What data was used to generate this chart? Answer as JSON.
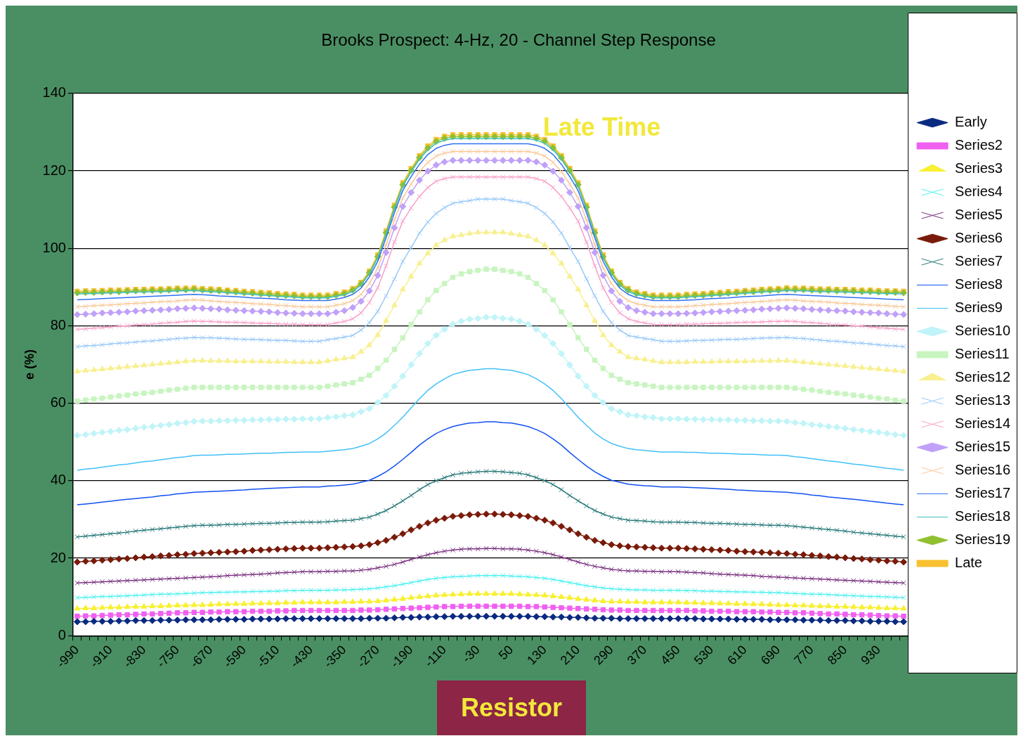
{
  "chart_data": {
    "type": "line",
    "title": "Brooks Prospect: 4-Hz, 20 - Channel Step Response",
    "ylabel": "e (%)",
    "categories": [
      "-990",
      null,
      null,
      null,
      "-910",
      null,
      null,
      null,
      "-830",
      null,
      null,
      null,
      "-750",
      null,
      null,
      null,
      "-670",
      null,
      null,
      null,
      "-590",
      null,
      null,
      null,
      "-510",
      null,
      null,
      null,
      "-430",
      null,
      null,
      null,
      "-350",
      null,
      null,
      null,
      "-270",
      null,
      null,
      null,
      "-190",
      null,
      null,
      null,
      "-110",
      null,
      null,
      null,
      "-30",
      null,
      null,
      null,
      "50",
      null,
      null,
      null,
      "130",
      null,
      null,
      null,
      "210",
      null,
      null,
      null,
      "290",
      null,
      null,
      null,
      "370",
      null,
      null,
      null,
      "450",
      null,
      null,
      null,
      "530",
      null,
      null,
      null,
      "610",
      null,
      null,
      null,
      "690",
      null,
      null,
      null,
      "770",
      null,
      null,
      null,
      "850",
      null,
      null,
      null,
      "930",
      null,
      null,
      null
    ],
    "ylim": [
      0,
      140
    ],
    "yticks": [
      0,
      20,
      40,
      60,
      80,
      100,
      120,
      140
    ],
    "grid": "y",
    "legend": "right",
    "annotations": [
      "Late Time",
      "Resistor"
    ],
    "series": [
      {
        "name": "Early",
        "color": "#0a2a80",
        "marker": "diamond",
        "values": [
          3.6,
          3.6,
          3.7,
          3.7,
          3.7,
          3.8,
          3.8,
          3.9,
          3.9,
          3.9,
          4.0,
          4.0,
          4.0,
          4.1,
          4.1,
          4.1,
          4.1,
          4.2,
          4.2,
          4.2,
          4.2,
          4.3,
          4.3,
          4.3,
          4.3,
          4.4,
          4.4,
          4.4,
          4.4,
          4.4,
          4.4,
          4.4,
          4.4,
          4.4,
          4.4,
          4.5,
          4.5,
          4.5,
          4.6,
          4.7,
          4.7,
          4.8,
          4.8,
          4.9,
          4.9,
          5.0,
          5.0,
          5.0,
          5.0,
          5.0,
          5.0,
          5.0,
          5.0,
          5.0,
          5.0,
          4.9,
          4.9,
          4.8,
          4.8,
          4.7,
          4.7,
          4.6,
          4.5,
          4.5,
          4.5,
          4.4,
          4.4,
          4.4,
          4.4,
          4.4,
          4.4,
          4.4,
          4.4,
          4.4,
          4.4,
          4.3,
          4.3,
          4.3,
          4.3,
          4.2,
          4.2,
          4.2,
          4.2,
          4.1,
          4.1,
          4.1,
          4.1,
          4.0,
          4.0,
          4.0,
          3.9,
          3.9,
          3.9,
          3.8,
          3.8,
          3.7,
          3.7,
          3.7,
          3.6,
          3.6
        ]
      },
      {
        "name": "Series2",
        "color": "#f060f0",
        "marker": "square",
        "values": [
          5.0,
          5.1,
          5.1,
          5.2,
          5.3,
          5.4,
          5.4,
          5.5,
          5.6,
          5.6,
          5.7,
          5.8,
          5.9,
          5.9,
          6.0,
          6.0,
          6.1,
          6.1,
          6.2,
          6.2,
          6.2,
          6.3,
          6.3,
          6.3,
          6.4,
          6.4,
          6.5,
          6.5,
          6.5,
          6.5,
          6.5,
          6.5,
          6.5,
          6.5,
          6.6,
          6.6,
          6.7,
          6.8,
          6.9,
          7.0,
          7.1,
          7.2,
          7.3,
          7.4,
          7.5,
          7.5,
          7.6,
          7.6,
          7.6,
          7.6,
          7.6,
          7.6,
          7.6,
          7.6,
          7.5,
          7.5,
          7.4,
          7.3,
          7.2,
          7.1,
          7.0,
          6.9,
          6.8,
          6.7,
          6.6,
          6.6,
          6.5,
          6.5,
          6.5,
          6.5,
          6.5,
          6.5,
          6.5,
          6.5,
          6.4,
          6.4,
          6.3,
          6.3,
          6.3,
          6.2,
          6.2,
          6.2,
          6.1,
          6.1,
          6.0,
          6.0,
          5.9,
          5.9,
          5.8,
          5.7,
          5.6,
          5.6,
          5.5,
          5.4,
          5.4,
          5.3,
          5.2,
          5.1,
          5.1,
          5.0
        ]
      },
      {
        "name": "Series3",
        "color": "#f8f030",
        "marker": "triangle",
        "values": [
          7.0,
          7.1,
          7.1,
          7.2,
          7.3,
          7.3,
          7.4,
          7.5,
          7.5,
          7.6,
          7.6,
          7.7,
          7.8,
          7.8,
          7.9,
          7.9,
          8.0,
          8.1,
          8.1,
          8.2,
          8.2,
          8.3,
          8.3,
          8.4,
          8.4,
          8.5,
          8.5,
          8.6,
          8.6,
          8.6,
          8.6,
          8.6,
          8.7,
          8.7,
          8.8,
          8.8,
          8.9,
          9.1,
          9.3,
          9.5,
          9.8,
          10.0,
          10.2,
          10.4,
          10.5,
          10.6,
          10.7,
          10.8,
          10.8,
          10.8,
          10.8,
          10.8,
          10.8,
          10.7,
          10.6,
          10.5,
          10.4,
          10.2,
          10.0,
          9.8,
          9.5,
          9.3,
          9.1,
          8.9,
          8.8,
          8.8,
          8.7,
          8.7,
          8.6,
          8.6,
          8.6,
          8.6,
          8.6,
          8.5,
          8.5,
          8.4,
          8.4,
          8.3,
          8.3,
          8.2,
          8.2,
          8.1,
          8.1,
          8.0,
          7.9,
          7.9,
          7.8,
          7.8,
          7.7,
          7.6,
          7.6,
          7.5,
          7.5,
          7.4,
          7.3,
          7.3,
          7.2,
          7.1,
          7.1,
          7.0
        ]
      },
      {
        "name": "Series4",
        "color": "#50f0f0",
        "marker": "cross",
        "values": [
          9.8,
          9.9,
          10.0,
          10.1,
          10.1,
          10.2,
          10.3,
          10.4,
          10.5,
          10.6,
          10.7,
          10.7,
          10.8,
          10.9,
          11.0,
          11.1,
          11.1,
          11.2,
          11.2,
          11.3,
          11.3,
          11.4,
          11.4,
          11.5,
          11.5,
          11.6,
          11.6,
          11.7,
          11.7,
          11.7,
          11.7,
          11.8,
          11.8,
          11.9,
          12.0,
          12.1,
          12.3,
          12.6,
          12.9,
          13.3,
          13.7,
          14.1,
          14.5,
          14.8,
          15.0,
          15.2,
          15.3,
          15.4,
          15.5,
          15.5,
          15.5,
          15.5,
          15.4,
          15.3,
          15.2,
          15.0,
          14.8,
          14.5,
          14.1,
          13.7,
          13.3,
          12.9,
          12.6,
          12.3,
          12.1,
          12.0,
          11.9,
          11.8,
          11.8,
          11.7,
          11.7,
          11.7,
          11.7,
          11.6,
          11.6,
          11.5,
          11.5,
          11.4,
          11.4,
          11.3,
          11.3,
          11.2,
          11.2,
          11.1,
          11.1,
          11.0,
          10.9,
          10.8,
          10.7,
          10.7,
          10.6,
          10.5,
          10.4,
          10.3,
          10.2,
          10.1,
          10.1,
          10.0,
          9.9,
          9.8
        ]
      },
      {
        "name": "Series5",
        "color": "#7a3080",
        "marker": "cross",
        "values": [
          13.6,
          13.7,
          13.8,
          13.9,
          14.0,
          14.1,
          14.2,
          14.3,
          14.4,
          14.5,
          14.6,
          14.7,
          14.8,
          14.9,
          15.0,
          15.1,
          15.2,
          15.3,
          15.5,
          15.6,
          15.7,
          15.8,
          15.9,
          16.0,
          16.2,
          16.3,
          16.4,
          16.5,
          16.5,
          16.5,
          16.6,
          16.6,
          16.7,
          16.7,
          16.9,
          17.1,
          17.5,
          17.9,
          18.4,
          19.0,
          19.7,
          20.3,
          20.9,
          21.4,
          21.8,
          22.1,
          22.3,
          22.4,
          22.4,
          22.5,
          22.5,
          22.4,
          22.4,
          22.3,
          22.1,
          21.8,
          21.4,
          20.9,
          20.3,
          19.7,
          19.0,
          18.4,
          17.9,
          17.5,
          17.1,
          16.9,
          16.7,
          16.7,
          16.6,
          16.6,
          16.5,
          16.5,
          16.5,
          16.4,
          16.3,
          16.2,
          16.0,
          15.9,
          15.8,
          15.7,
          15.6,
          15.5,
          15.3,
          15.2,
          15.1,
          15.0,
          14.9,
          14.8,
          14.7,
          14.6,
          14.5,
          14.4,
          14.3,
          14.2,
          14.1,
          14.0,
          13.9,
          13.8,
          13.7,
          13.6
        ]
      },
      {
        "name": "Series6",
        "color": "#7a1a0a",
        "marker": "diamond",
        "values": [
          19.0,
          19.2,
          19.3,
          19.5,
          19.6,
          19.8,
          19.9,
          20.1,
          20.3,
          20.4,
          20.6,
          20.7,
          20.9,
          21.0,
          21.2,
          21.3,
          21.4,
          21.5,
          21.6,
          21.7,
          21.8,
          22.0,
          22.1,
          22.2,
          22.3,
          22.4,
          22.5,
          22.6,
          22.6,
          22.6,
          22.7,
          22.8,
          22.9,
          23.0,
          23.2,
          23.5,
          24.0,
          24.6,
          25.4,
          26.3,
          27.3,
          28.2,
          29.1,
          29.8,
          30.3,
          30.8,
          31.0,
          31.2,
          31.3,
          31.4,
          31.4,
          31.3,
          31.2,
          31.0,
          30.8,
          30.3,
          29.8,
          29.1,
          28.2,
          27.3,
          26.3,
          25.4,
          24.6,
          24.0,
          23.5,
          23.2,
          23.0,
          22.9,
          22.8,
          22.7,
          22.6,
          22.6,
          22.6,
          22.5,
          22.4,
          22.3,
          22.2,
          22.1,
          22.0,
          21.8,
          21.7,
          21.6,
          21.5,
          21.4,
          21.3,
          21.2,
          21.0,
          20.9,
          20.7,
          20.6,
          20.4,
          20.3,
          20.1,
          19.9,
          19.8,
          19.6,
          19.5,
          19.3,
          19.2,
          19.0
        ]
      },
      {
        "name": "Series7",
        "color": "#2a7a7a",
        "marker": "cross",
        "values": [
          25.5,
          25.7,
          25.9,
          26.1,
          26.3,
          26.5,
          26.7,
          27.0,
          27.2,
          27.4,
          27.6,
          27.8,
          28.0,
          28.2,
          28.4,
          28.5,
          28.5,
          28.6,
          28.7,
          28.7,
          28.8,
          28.9,
          29.0,
          29.0,
          29.1,
          29.2,
          29.2,
          29.3,
          29.3,
          29.3,
          29.4,
          29.6,
          29.7,
          29.8,
          30.2,
          30.6,
          31.4,
          32.3,
          33.5,
          34.8,
          36.2,
          37.7,
          39.0,
          40.0,
          40.8,
          41.5,
          41.9,
          42.1,
          42.3,
          42.4,
          42.4,
          42.3,
          42.1,
          41.9,
          41.5,
          40.8,
          40.0,
          39.0,
          37.7,
          36.2,
          34.8,
          33.5,
          32.3,
          31.4,
          30.6,
          30.2,
          29.8,
          29.7,
          29.6,
          29.4,
          29.3,
          29.3,
          29.3,
          29.2,
          29.2,
          29.1,
          29.0,
          29.0,
          28.9,
          28.8,
          28.7,
          28.7,
          28.6,
          28.5,
          28.5,
          28.4,
          28.2,
          28.0,
          27.8,
          27.6,
          27.4,
          27.2,
          27.0,
          26.7,
          26.5,
          26.3,
          26.1,
          25.9,
          25.7,
          25.5
        ]
      },
      {
        "name": "Series8",
        "color": "#1050f0",
        "marker": "none",
        "values": [
          33.8,
          34.0,
          34.2,
          34.5,
          34.7,
          35.0,
          35.2,
          35.4,
          35.6,
          35.8,
          36.1,
          36.3,
          36.6,
          36.8,
          37.0,
          37.1,
          37.2,
          37.3,
          37.4,
          37.5,
          37.6,
          37.8,
          37.9,
          38.0,
          38.1,
          38.2,
          38.3,
          38.4,
          38.4,
          38.4,
          38.6,
          38.7,
          38.9,
          39.1,
          39.6,
          40.1,
          41.1,
          42.3,
          43.8,
          45.5,
          47.3,
          49.2,
          50.8,
          52.2,
          53.2,
          54.0,
          54.5,
          54.9,
          55.0,
          55.2,
          55.2,
          55.0,
          54.9,
          54.5,
          54.0,
          53.2,
          52.2,
          50.8,
          49.2,
          47.3,
          45.5,
          43.8,
          42.3,
          41.1,
          40.1,
          39.6,
          39.1,
          38.9,
          38.7,
          38.6,
          38.4,
          38.4,
          38.4,
          38.3,
          38.2,
          38.1,
          38.0,
          37.9,
          37.8,
          37.6,
          37.5,
          37.4,
          37.3,
          37.2,
          37.1,
          37.0,
          36.8,
          36.6,
          36.3,
          36.1,
          35.8,
          35.6,
          35.4,
          35.2,
          35.0,
          34.7,
          34.5,
          34.2,
          34.0,
          33.8
        ]
      },
      {
        "name": "Series9",
        "color": "#40c0f8",
        "marker": "none",
        "values": [
          42.7,
          43.0,
          43.2,
          43.5,
          43.8,
          44.1,
          44.3,
          44.6,
          44.9,
          45.1,
          45.4,
          45.7,
          46.0,
          46.2,
          46.5,
          46.6,
          46.6,
          46.7,
          46.8,
          46.8,
          46.9,
          47.0,
          47.1,
          47.1,
          47.2,
          47.3,
          47.3,
          47.4,
          47.4,
          47.4,
          47.6,
          47.8,
          48.0,
          48.3,
          48.9,
          49.6,
          50.8,
          52.3,
          54.3,
          56.4,
          58.8,
          61.2,
          63.3,
          65.0,
          66.3,
          67.4,
          68.0,
          68.5,
          68.7,
          68.9,
          68.9,
          68.7,
          68.5,
          68.0,
          67.4,
          66.3,
          65.0,
          63.3,
          61.2,
          58.8,
          56.4,
          54.3,
          52.3,
          50.8,
          49.6,
          48.9,
          48.3,
          48.0,
          47.8,
          47.6,
          47.4,
          47.4,
          47.4,
          47.3,
          47.3,
          47.2,
          47.1,
          47.1,
          47.0,
          46.9,
          46.8,
          46.8,
          46.7,
          46.6,
          46.6,
          46.5,
          46.2,
          46.0,
          45.7,
          45.4,
          45.1,
          44.9,
          44.6,
          44.3,
          44.1,
          43.8,
          43.5,
          43.2,
          43.0,
          42.7
        ]
      },
      {
        "name": "Series10",
        "color": "#c0f4f8",
        "marker": "diamond",
        "values": [
          51.7,
          51.9,
          52.2,
          52.5,
          52.7,
          53.0,
          53.2,
          53.5,
          53.8,
          54.0,
          54.3,
          54.5,
          54.8,
          55.0,
          55.3,
          55.4,
          55.4,
          55.5,
          55.5,
          55.6,
          55.6,
          55.7,
          55.7,
          55.8,
          55.8,
          55.9,
          55.9,
          56.0,
          56.0,
          56.0,
          56.3,
          56.5,
          56.8,
          57.0,
          57.8,
          58.6,
          60.2,
          62.0,
          64.4,
          67.0,
          69.9,
          72.8,
          75.4,
          77.5,
          79.1,
          80.4,
          81.2,
          81.7,
          81.9,
          82.2,
          82.2,
          81.9,
          81.7,
          81.2,
          80.4,
          79.1,
          77.5,
          75.4,
          72.8,
          69.9,
          67.0,
          64.4,
          62.0,
          60.2,
          58.6,
          57.8,
          57.0,
          56.8,
          56.5,
          56.3,
          56.0,
          56.0,
          56.0,
          55.9,
          55.9,
          55.8,
          55.8,
          55.7,
          55.7,
          55.6,
          55.6,
          55.5,
          55.5,
          55.4,
          55.4,
          55.3,
          55.0,
          54.8,
          54.5,
          54.3,
          54.0,
          53.8,
          53.5,
          53.2,
          53.0,
          52.7,
          52.5,
          52.2,
          51.9,
          51.7
        ]
      },
      {
        "name": "Series11",
        "color": "#c8f4c0",
        "marker": "square",
        "values": [
          60.6,
          60.8,
          61.1,
          61.3,
          61.6,
          61.9,
          62.1,
          62.4,
          62.6,
          62.8,
          63.1,
          63.4,
          63.6,
          63.9,
          64.1,
          64.1,
          64.1,
          64.1,
          64.1,
          64.1,
          64.1,
          64.1,
          64.1,
          64.1,
          64.1,
          64.1,
          64.1,
          64.1,
          64.1,
          64.1,
          64.4,
          64.7,
          65.0,
          65.3,
          66.2,
          67.2,
          69.0,
          71.1,
          73.9,
          76.9,
          80.3,
          83.6,
          86.7,
          89.1,
          90.9,
          92.5,
          93.4,
          94.0,
          94.3,
          94.6,
          94.6,
          94.3,
          94.0,
          93.4,
          92.5,
          90.9,
          89.1,
          86.7,
          83.6,
          80.3,
          76.9,
          73.9,
          71.1,
          69.0,
          67.2,
          66.2,
          65.3,
          65.0,
          64.7,
          64.4,
          64.1,
          64.1,
          64.1,
          64.1,
          64.1,
          64.1,
          64.1,
          64.1,
          64.1,
          64.1,
          64.1,
          64.1,
          64.1,
          64.1,
          64.1,
          64.1,
          63.9,
          63.6,
          63.4,
          63.1,
          62.8,
          62.6,
          62.4,
          62.1,
          61.9,
          61.6,
          61.3,
          61.1,
          60.8,
          60.6
        ]
      },
      {
        "name": "Series12",
        "color": "#f8f090",
        "marker": "triangle",
        "values": [
          68.2,
          68.4,
          68.6,
          68.8,
          69.0,
          69.2,
          69.4,
          69.6,
          69.8,
          70.0,
          70.2,
          70.4,
          70.6,
          70.8,
          71.0,
          71.0,
          70.9,
          70.9,
          70.9,
          70.8,
          70.8,
          70.8,
          70.8,
          70.7,
          70.7,
          70.7,
          70.6,
          70.6,
          70.6,
          70.6,
          70.9,
          71.3,
          71.6,
          71.9,
          73.3,
          75.0,
          77.6,
          81.3,
          85.3,
          89.4,
          92.7,
          96.1,
          98.7,
          100.8,
          102.1,
          103.1,
          103.4,
          103.8,
          104.1,
          104.1,
          104.1,
          104.1,
          103.8,
          103.4,
          103.1,
          102.1,
          100.8,
          98.7,
          96.1,
          92.7,
          89.4,
          85.3,
          81.3,
          77.6,
          75.0,
          73.3,
          71.9,
          71.6,
          71.3,
          70.9,
          70.6,
          70.6,
          70.6,
          70.6,
          70.7,
          70.7,
          70.7,
          70.8,
          70.8,
          70.8,
          70.8,
          70.9,
          70.9,
          70.9,
          71.0,
          71.0,
          70.8,
          70.6,
          70.4,
          70.2,
          70.0,
          69.8,
          69.6,
          69.4,
          69.2,
          69.0,
          68.8,
          68.6,
          68.4,
          68.2
        ]
      },
      {
        "name": "Series13",
        "color": "#98c8f8",
        "marker": "cross",
        "values": [
          74.6,
          74.8,
          74.9,
          75.1,
          75.3,
          75.5,
          75.6,
          75.8,
          76.0,
          76.1,
          76.3,
          76.5,
          76.7,
          76.8,
          77.0,
          76.9,
          76.9,
          76.8,
          76.7,
          76.6,
          76.5,
          76.5,
          76.4,
          76.3,
          76.2,
          76.2,
          76.1,
          76.0,
          76.0,
          76.0,
          76.4,
          76.7,
          77.1,
          77.5,
          78.9,
          80.8,
          83.7,
          87.7,
          92.1,
          96.6,
          100.2,
          103.9,
          106.8,
          109.0,
          110.5,
          111.6,
          112.0,
          112.3,
          112.7,
          112.7,
          112.7,
          112.7,
          112.3,
          112.0,
          111.6,
          110.5,
          109.0,
          106.8,
          103.9,
          100.2,
          96.6,
          92.1,
          87.7,
          83.7,
          80.8,
          78.9,
          77.5,
          77.1,
          76.7,
          76.4,
          76.0,
          76.0,
          76.0,
          76.1,
          76.2,
          76.2,
          76.3,
          76.4,
          76.5,
          76.5,
          76.6,
          76.7,
          76.8,
          76.9,
          76.9,
          77.0,
          76.8,
          76.7,
          76.5,
          76.3,
          76.1,
          76.0,
          75.8,
          75.6,
          75.5,
          75.3,
          75.1,
          74.9,
          74.8,
          74.6
        ]
      },
      {
        "name": "Series14",
        "color": "#f8a0c8",
        "marker": "cross",
        "values": [
          79.1,
          79.2,
          79.4,
          79.5,
          79.7,
          79.9,
          80.0,
          80.2,
          80.3,
          80.4,
          80.6,
          80.8,
          80.9,
          81.1,
          81.2,
          81.1,
          81.1,
          81.0,
          80.9,
          80.9,
          80.8,
          80.7,
          80.6,
          80.6,
          80.5,
          80.4,
          80.4,
          80.3,
          80.3,
          80.3,
          80.3,
          80.7,
          81.1,
          81.8,
          83.3,
          86.0,
          89.8,
          95.5,
          101.6,
          107.0,
          110.4,
          113.4,
          115.7,
          117.3,
          118.0,
          118.4,
          118.4,
          118.4,
          118.4,
          118.4,
          118.4,
          118.4,
          118.4,
          118.4,
          118.4,
          118.0,
          117.3,
          115.7,
          113.4,
          110.4,
          107.0,
          101.6,
          95.5,
          89.8,
          86.0,
          83.3,
          81.8,
          81.1,
          80.7,
          80.3,
          80.3,
          80.3,
          80.3,
          80.4,
          80.4,
          80.5,
          80.6,
          80.6,
          80.7,
          80.8,
          80.9,
          80.9,
          81.0,
          81.1,
          81.1,
          81.2,
          81.1,
          80.9,
          80.8,
          80.6,
          80.4,
          80.3,
          80.2,
          80.0,
          79.9,
          79.7,
          79.5,
          79.4,
          79.2,
          79.1
        ]
      },
      {
        "name": "Series15",
        "color": "#c0a0f8",
        "marker": "diamond",
        "values": [
          82.9,
          83.0,
          83.1,
          83.3,
          83.4,
          83.5,
          83.6,
          83.8,
          83.9,
          84.0,
          84.1,
          84.2,
          84.4,
          84.5,
          84.6,
          84.5,
          84.4,
          84.3,
          84.1,
          84.0,
          83.9,
          83.8,
          83.7,
          83.6,
          83.4,
          83.3,
          83.2,
          83.1,
          83.1,
          83.1,
          83.1,
          83.5,
          83.9,
          84.7,
          86.3,
          89.0,
          93.0,
          98.9,
          105.3,
          110.8,
          114.4,
          117.6,
          119.9,
          121.5,
          122.3,
          122.7,
          122.7,
          122.7,
          122.7,
          122.7,
          122.7,
          122.7,
          122.7,
          122.7,
          122.7,
          122.3,
          121.5,
          119.9,
          117.6,
          114.4,
          110.8,
          105.3,
          98.9,
          93.0,
          89.0,
          86.3,
          84.7,
          83.9,
          83.5,
          83.1,
          83.1,
          83.1,
          83.1,
          83.2,
          83.3,
          83.4,
          83.6,
          83.7,
          83.8,
          83.9,
          84.0,
          84.1,
          84.3,
          84.4,
          84.5,
          84.6,
          84.5,
          84.4,
          84.2,
          84.1,
          84.0,
          83.9,
          83.8,
          83.6,
          83.5,
          83.4,
          83.3,
          83.1,
          83.0,
          82.9
        ]
      },
      {
        "name": "Series16",
        "color": "#f8c898",
        "marker": "cross",
        "values": [
          84.9,
          85.0,
          85.2,
          85.3,
          85.4,
          85.5,
          85.7,
          85.8,
          85.9,
          86.1,
          86.2,
          86.3,
          86.4,
          86.6,
          86.7,
          86.6,
          86.4,
          86.3,
          86.1,
          86.0,
          85.9,
          85.7,
          85.6,
          85.5,
          85.3,
          85.2,
          85.0,
          84.9,
          84.9,
          84.9,
          84.9,
          85.3,
          85.7,
          86.5,
          88.1,
          90.9,
          94.9,
          100.9,
          107.4,
          113.0,
          116.6,
          119.8,
          122.2,
          123.8,
          124.6,
          125.0,
          125.0,
          125.0,
          125.0,
          125.0,
          125.0,
          125.0,
          125.0,
          125.0,
          125.0,
          124.6,
          123.8,
          122.2,
          119.8,
          116.6,
          113.0,
          107.4,
          100.9,
          94.9,
          90.9,
          88.1,
          86.5,
          85.7,
          85.3,
          84.9,
          84.9,
          84.9,
          84.9,
          85.0,
          85.2,
          85.3,
          85.5,
          85.6,
          85.7,
          85.9,
          86.0,
          86.1,
          86.3,
          86.4,
          86.6,
          86.7,
          86.6,
          86.4,
          86.3,
          86.2,
          86.1,
          85.9,
          85.8,
          85.7,
          85.5,
          85.4,
          85.3,
          85.2,
          85.0,
          84.9
        ]
      },
      {
        "name": "Series17",
        "color": "#3070f0",
        "marker": "none",
        "values": [
          86.7,
          86.8,
          86.9,
          87.0,
          87.1,
          87.2,
          87.3,
          87.4,
          87.5,
          87.6,
          87.7,
          87.8,
          87.9,
          88.0,
          88.1,
          88.0,
          87.9,
          87.7,
          87.6,
          87.5,
          87.4,
          87.2,
          87.1,
          87.0,
          86.9,
          86.7,
          86.6,
          86.5,
          86.5,
          86.5,
          86.5,
          86.9,
          87.3,
          88.1,
          89.7,
          92.6,
          96.6,
          102.7,
          109.2,
          114.9,
          118.5,
          121.7,
          124.2,
          125.8,
          126.6,
          127.0,
          127.0,
          127.0,
          127.0,
          127.0,
          127.0,
          127.0,
          127.0,
          127.0,
          127.0,
          126.6,
          125.8,
          124.2,
          121.7,
          118.5,
          114.9,
          109.2,
          102.7,
          96.6,
          92.6,
          89.7,
          88.1,
          87.3,
          86.9,
          86.5,
          86.5,
          86.5,
          86.5,
          86.6,
          86.7,
          86.9,
          87.0,
          87.1,
          87.2,
          87.4,
          87.5,
          87.6,
          87.7,
          87.9,
          88.0,
          88.1,
          88.0,
          87.9,
          87.8,
          87.7,
          87.6,
          87.5,
          87.4,
          87.3,
          87.2,
          87.1,
          87.0,
          86.9,
          86.8,
          86.7
        ]
      },
      {
        "name": "Series18",
        "color": "#40c0c0",
        "marker": "none",
        "values": [
          88.2,
          88.3,
          88.3,
          88.4,
          88.5,
          88.5,
          88.6,
          88.7,
          88.7,
          88.8,
          88.8,
          88.9,
          89.0,
          89.0,
          89.1,
          88.9,
          88.8,
          88.7,
          88.5,
          88.4,
          88.2,
          88.1,
          87.9,
          87.8,
          87.6,
          87.5,
          87.4,
          87.2,
          87.2,
          87.2,
          87.2,
          87.6,
          88.0,
          88.8,
          90.5,
          93.4,
          97.5,
          103.6,
          110.2,
          116.0,
          119.7,
          123.0,
          125.4,
          127.1,
          127.9,
          128.3,
          128.3,
          128.3,
          128.3,
          128.3,
          128.3,
          128.3,
          128.3,
          128.3,
          128.3,
          127.9,
          127.1,
          125.4,
          123.0,
          119.7,
          116.0,
          110.2,
          103.6,
          97.5,
          93.4,
          90.5,
          88.8,
          88.0,
          87.6,
          87.2,
          87.2,
          87.2,
          87.2,
          87.4,
          87.5,
          87.6,
          87.8,
          87.9,
          88.1,
          88.2,
          88.4,
          88.5,
          88.7,
          88.8,
          88.9,
          89.1,
          89.0,
          89.0,
          88.9,
          88.8,
          88.8,
          88.7,
          88.7,
          88.6,
          88.5,
          88.5,
          88.4,
          88.3,
          88.3,
          88.2
        ]
      },
      {
        "name": "Series19",
        "color": "#90c030",
        "marker": "diamond",
        "values": [
          88.5,
          88.6,
          88.6,
          88.7,
          88.8,
          88.8,
          88.9,
          89.0,
          89.0,
          89.1,
          89.1,
          89.2,
          89.3,
          89.3,
          89.4,
          89.2,
          89.1,
          89.0,
          88.8,
          88.7,
          88.5,
          88.4,
          88.2,
          88.1,
          87.9,
          87.8,
          87.7,
          87.5,
          87.5,
          87.5,
          87.5,
          87.9,
          88.3,
          89.2,
          90.8,
          93.7,
          97.8,
          104.0,
          110.6,
          116.4,
          120.1,
          123.4,
          125.9,
          127.6,
          128.4,
          128.8,
          128.8,
          128.8,
          128.8,
          128.8,
          128.8,
          128.8,
          128.8,
          128.8,
          128.8,
          128.4,
          127.6,
          125.9,
          123.4,
          120.1,
          116.4,
          110.6,
          104.0,
          97.8,
          93.7,
          90.8,
          89.2,
          88.3,
          87.9,
          87.5,
          87.5,
          87.5,
          87.5,
          87.7,
          87.8,
          87.9,
          88.1,
          88.2,
          88.4,
          88.5,
          88.7,
          88.8,
          89.0,
          89.1,
          89.2,
          89.4,
          89.3,
          89.3,
          89.2,
          89.1,
          89.1,
          89.0,
          89.0,
          88.9,
          88.8,
          88.8,
          88.7,
          88.6,
          88.6,
          88.5
        ]
      },
      {
        "name": "Late",
        "color": "#f8c030",
        "marker": "square",
        "values": [
          88.9,
          89.0,
          89.0,
          89.1,
          89.2,
          89.2,
          89.3,
          89.4,
          89.4,
          89.5,
          89.5,
          89.6,
          89.7,
          89.7,
          89.8,
          89.6,
          89.5,
          89.4,
          89.2,
          89.1,
          88.9,
          88.8,
          88.6,
          88.5,
          88.3,
          88.2,
          88.1,
          87.9,
          87.9,
          87.9,
          87.9,
          88.3,
          88.7,
          89.6,
          91.2,
          94.1,
          98.3,
          104.5,
          111.1,
          116.9,
          120.6,
          123.9,
          126.4,
          128.1,
          128.9,
          129.3,
          129.3,
          129.3,
          129.3,
          129.3,
          129.3,
          129.3,
          129.3,
          129.3,
          129.3,
          128.9,
          128.1,
          126.4,
          123.9,
          120.6,
          116.9,
          111.1,
          104.5,
          98.3,
          94.1,
          91.2,
          89.6,
          88.7,
          88.3,
          87.9,
          87.9,
          87.9,
          87.9,
          88.1,
          88.2,
          88.3,
          88.5,
          88.6,
          88.8,
          88.9,
          89.1,
          89.2,
          89.4,
          89.5,
          89.6,
          89.8,
          89.7,
          89.7,
          89.6,
          89.5,
          89.5,
          89.4,
          89.4,
          89.3,
          89.2,
          89.2,
          89.1,
          89.0,
          89.0,
          88.9
        ]
      }
    ]
  }
}
